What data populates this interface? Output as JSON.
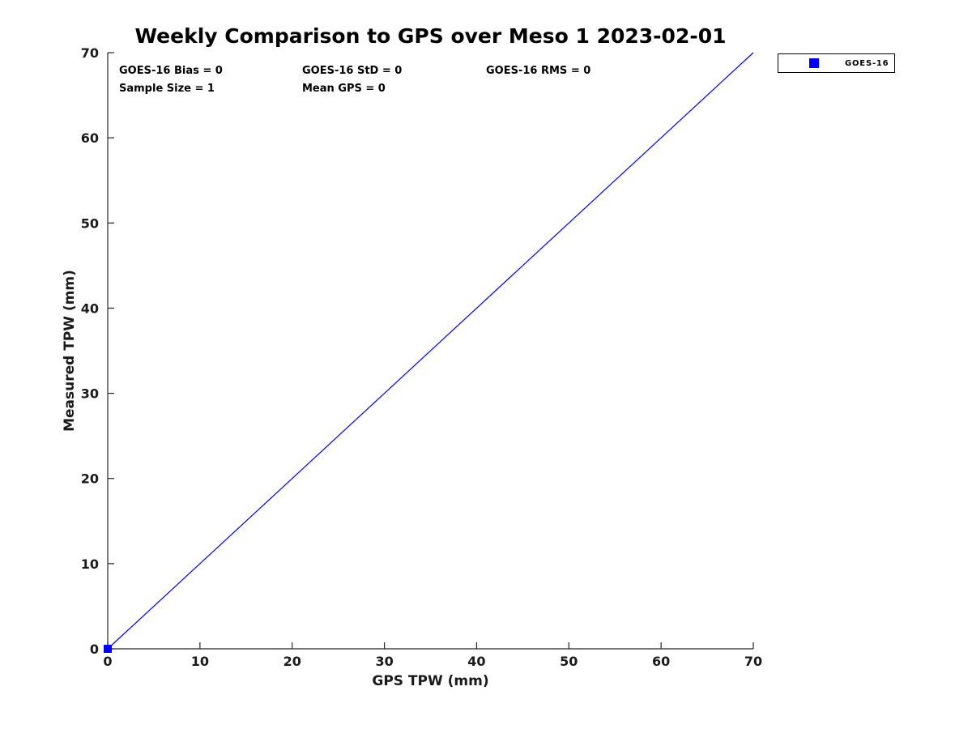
{
  "stats": {
    "bias": "GOES-16 Bias = 0",
    "std": "GOES-16 StD = 0",
    "rms": "GOES-16 RMS = 0",
    "sample_size": "Sample Size = 1",
    "mean_gps": "Mean GPS = 0"
  },
  "legend": {
    "position": "top-right-outside",
    "items": [
      {
        "label": "GOES-16",
        "marker": "filled-square",
        "color": "#0000ff"
      }
    ]
  },
  "colors": {
    "series_blue": "#0000ff",
    "axis": "#262626",
    "tick_text": "#1a1a1a",
    "text": "#000000",
    "background": "#ffffff"
  },
  "chart_data": {
    "type": "scatter",
    "title": "Weekly Comparison to GPS over Meso 1 2023-02-01",
    "xlabel": "GPS TPW (mm)",
    "ylabel": "Measured TPW (mm)",
    "xlim": [
      0,
      70
    ],
    "ylim": [
      0,
      70
    ],
    "x_ticks": [
      0,
      10,
      20,
      30,
      40,
      50,
      60,
      70
    ],
    "y_ticks": [
      0,
      10,
      20,
      30,
      40,
      50,
      60,
      70
    ],
    "grid": false,
    "legend_position": "top-right-outside",
    "annotations": [
      "GOES-16 Bias = 0",
      "GOES-16 StD = 0",
      "GOES-16 RMS = 0",
      "Sample Size = 1",
      "Mean GPS = 0"
    ],
    "series": [
      {
        "name": "GOES-16",
        "type": "scatter",
        "marker": "square",
        "color": "#0000ff",
        "points": [
          [
            0,
            0
          ]
        ]
      },
      {
        "name": "one-to-one-line",
        "type": "line",
        "color": "#0000ff",
        "points": [
          [
            0,
            0
          ],
          [
            70,
            70
          ]
        ]
      }
    ]
  }
}
